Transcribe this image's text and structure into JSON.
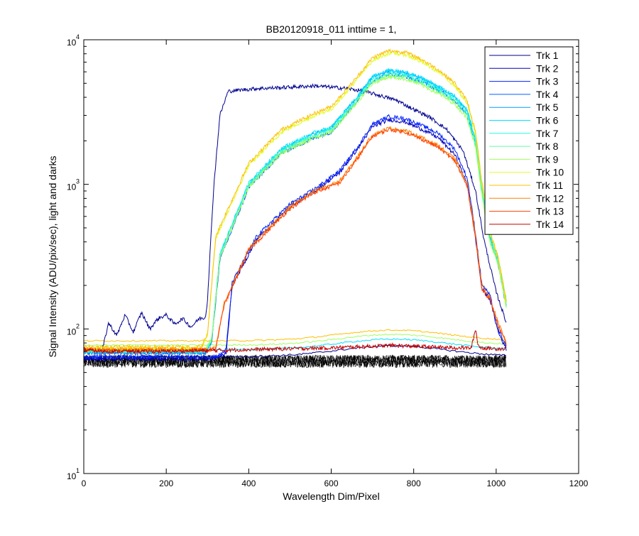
{
  "chart_data": {
    "type": "line",
    "title": "BB20120918_011 inttime = 1,",
    "xlabel": "Wavelength Dim/Pixel",
    "ylabel": "Signal Intensity (ADU/pix/sec), light and darks",
    "xlim": [
      0,
      1200
    ],
    "ylim": [
      10,
      10000
    ],
    "yscale": "log",
    "grid": false,
    "legend_position": "top-right",
    "x_ticks": [
      "0",
      "200",
      "400",
      "600",
      "800",
      "1000",
      "1200"
    ],
    "y_ticks": [
      {
        "base": "10",
        "exp": "1"
      },
      {
        "base": "10",
        "exp": "2"
      },
      {
        "base": "10",
        "exp": "3"
      },
      {
        "base": "10",
        "exp": "4"
      }
    ],
    "series": [
      {
        "name": "Trk 1",
        "color": "#00008f",
        "x": [
          0,
          40,
          60,
          80,
          100,
          120,
          140,
          160,
          180,
          200,
          220,
          240,
          260,
          280,
          295,
          300,
          315,
          330,
          350,
          380,
          420,
          500,
          560,
          600,
          640,
          680,
          720,
          760,
          800,
          840,
          880,
          920,
          950,
          970,
          1000,
          1025
        ],
        "y": [
          63,
          62,
          110,
          90,
          125,
          95,
          130,
          100,
          118,
          125,
          108,
          118,
          103,
          118,
          120,
          160,
          950,
          3000,
          4400,
          4500,
          4600,
          4700,
          4800,
          4700,
          4600,
          4400,
          4100,
          3800,
          3300,
          2900,
          2400,
          1700,
          900,
          420,
          180,
          110
        ]
      },
      {
        "name": "Trk 2",
        "color": "#0000bf",
        "x": [
          0,
          300,
          330,
          345,
          360,
          420,
          500,
          560,
          620,
          660,
          700,
          740,
          780,
          820,
          860,
          900,
          930,
          950,
          965,
          985,
          1005,
          1025
        ],
        "y": [
          62,
          62,
          64,
          68,
          200,
          420,
          700,
          900,
          1200,
          1700,
          2500,
          2800,
          2700,
          2400,
          2100,
          1600,
          1000,
          420,
          190,
          160,
          95,
          72
        ]
      },
      {
        "name": "Trk 3",
        "color": "#0020ff",
        "x": [
          0,
          310,
          330,
          345,
          360,
          420,
          500,
          560,
          620,
          660,
          700,
          740,
          780,
          820,
          860,
          900,
          930,
          950,
          965,
          985,
          1005,
          1025
        ],
        "y": [
          64,
          64,
          66,
          72,
          210,
          440,
          730,
          930,
          1240,
          1750,
          2600,
          2950,
          2850,
          2550,
          2250,
          1750,
          1100,
          460,
          205,
          170,
          100,
          74
        ]
      },
      {
        "name": "Trk 4",
        "color": "#0060ff",
        "x": [
          0,
          295,
          310,
          330,
          400,
          480,
          560,
          600,
          660,
          700,
          740,
          780,
          820,
          860,
          900,
          930,
          950,
          965,
          985,
          1005,
          1025
        ],
        "y": [
          68,
          68,
          80,
          300,
          950,
          1650,
          2100,
          2300,
          3700,
          5200,
          5800,
          5600,
          5100,
          4500,
          3800,
          3000,
          1900,
          900,
          420,
          280,
          140
        ]
      },
      {
        "name": "Trk 5",
        "color": "#00a0ff",
        "x": [
          0,
          295,
          310,
          330,
          400,
          480,
          560,
          600,
          660,
          700,
          740,
          780,
          820,
          860,
          900,
          930,
          950,
          965,
          985,
          1005,
          1025
        ],
        "y": [
          69,
          69,
          82,
          320,
          1000,
          1750,
          2250,
          2450,
          3900,
          5500,
          6100,
          5900,
          5400,
          4700,
          4000,
          3200,
          2000,
          950,
          440,
          300,
          150
        ]
      },
      {
        "name": "Trk 6",
        "color": "#00e0ff",
        "x": [
          0,
          295,
          310,
          330,
          400,
          480,
          560,
          600,
          660,
          700,
          740,
          780,
          820,
          860,
          900,
          930,
          950,
          965,
          985,
          1005,
          1025
        ],
        "y": [
          70,
          70,
          84,
          330,
          1020,
          1780,
          2280,
          2480,
          3950,
          5550,
          6150,
          5950,
          5450,
          4750,
          4050,
          3250,
          2050,
          980,
          450,
          310,
          155
        ]
      },
      {
        "name": "Trk 7",
        "color": "#20ffdf",
        "x": [
          0,
          295,
          310,
          330,
          400,
          480,
          560,
          600,
          660,
          700,
          740,
          780,
          820,
          860,
          900,
          930,
          950,
          965,
          985,
          1005,
          1025
        ],
        "y": [
          70,
          70,
          84,
          325,
          1000,
          1740,
          2200,
          2400,
          3800,
          5300,
          5900,
          5700,
          5200,
          4550,
          3900,
          3100,
          1950,
          930,
          430,
          295,
          148
        ]
      },
      {
        "name": "Trk 8",
        "color": "#60ff9f",
        "x": [
          0,
          295,
          310,
          330,
          400,
          480,
          560,
          600,
          660,
          700,
          740,
          780,
          820,
          860,
          900,
          930,
          950,
          965,
          985,
          1005,
          1025
        ],
        "y": [
          71,
          71,
          85,
          318,
          980,
          1700,
          2150,
          2350,
          3700,
          5150,
          5700,
          5500,
          5000,
          4400,
          3750,
          2950,
          1850,
          880,
          410,
          285,
          142
        ]
      },
      {
        "name": "Trk 9",
        "color": "#a0ff5f",
        "x": [
          0,
          295,
          310,
          330,
          400,
          480,
          560,
          600,
          660,
          700,
          740,
          780,
          820,
          860,
          900,
          930,
          950,
          965,
          985,
          1005,
          1025
        ],
        "y": [
          72,
          72,
          86,
          310,
          960,
          1650,
          2100,
          2300,
          3600,
          5000,
          5550,
          5350,
          4850,
          4250,
          3600,
          2850,
          1800,
          850,
          400,
          275,
          138
        ]
      },
      {
        "name": "Trk 10",
        "color": "#dfff20",
        "x": [
          0,
          285,
          300,
          320,
          400,
          480,
          560,
          600,
          660,
          700,
          740,
          780,
          820,
          860,
          900,
          930,
          950,
          965,
          985,
          1005,
          1025
        ],
        "y": [
          73,
          73,
          90,
          420,
          1350,
          2300,
          3000,
          3300,
          5200,
          7200,
          8100,
          7900,
          7000,
          6000,
          4800,
          3600,
          2200,
          1000,
          460,
          300,
          150
        ]
      },
      {
        "name": "Trk 11",
        "color": "#ffbf00",
        "x": [
          0,
          285,
          300,
          320,
          400,
          480,
          560,
          600,
          660,
          700,
          740,
          780,
          820,
          860,
          900,
          930,
          950,
          965,
          985,
          1005,
          1025
        ],
        "y": [
          75,
          75,
          92,
          440,
          1400,
          2400,
          3100,
          3450,
          5400,
          7500,
          8400,
          8200,
          7300,
          6200,
          5000,
          3750,
          2300,
          1050,
          480,
          310,
          155
        ]
      },
      {
        "name": "Trk 12",
        "color": "#ff7f00",
        "x": [
          0,
          300,
          320,
          340,
          400,
          500,
          560,
          620,
          660,
          700,
          740,
          780,
          820,
          860,
          900,
          930,
          950,
          965,
          985,
          1005,
          1025
        ],
        "y": [
          72,
          72,
          74,
          150,
          360,
          700,
          900,
          1050,
          1500,
          2200,
          2450,
          2350,
          2100,
          1850,
          1500,
          1000,
          450,
          200,
          165,
          110,
          80
        ]
      },
      {
        "name": "Trk 13",
        "color": "#ff3f00",
        "x": [
          0,
          300,
          320,
          340,
          400,
          500,
          560,
          620,
          660,
          700,
          740,
          780,
          820,
          860,
          900,
          930,
          950,
          965,
          985,
          1005,
          1025
        ],
        "y": [
          71,
          71,
          73,
          145,
          350,
          680,
          880,
          1020,
          1450,
          2150,
          2400,
          2300,
          2050,
          1800,
          1450,
          960,
          430,
          190,
          160,
          105,
          78
        ]
      },
      {
        "name": "Trk 14",
        "color": "#bf0000",
        "x": [
          0,
          40,
          100,
          200,
          300,
          400,
          500,
          600,
          700,
          750,
          800,
          900,
          940,
          950,
          956,
          962,
          1000,
          1025
        ],
        "y": [
          72,
          70,
          70,
          70,
          71,
          72,
          73,
          74,
          76,
          77,
          76,
          74,
          74,
          100,
          78,
          74,
          73,
          73
        ]
      }
    ],
    "flat_series_dark": [
      {
        "color": "#00008f",
        "level": 70
      },
      {
        "color": "#00e0ff",
        "level": 78
      },
      {
        "color": "#a0ff5f",
        "level": 84
      },
      {
        "color": "#ffbf00",
        "level": 90
      }
    ],
    "darks": {
      "color": "#000000",
      "level_low": 54,
      "level_high": 66,
      "x_start": 0,
      "x_end": 1025
    }
  }
}
